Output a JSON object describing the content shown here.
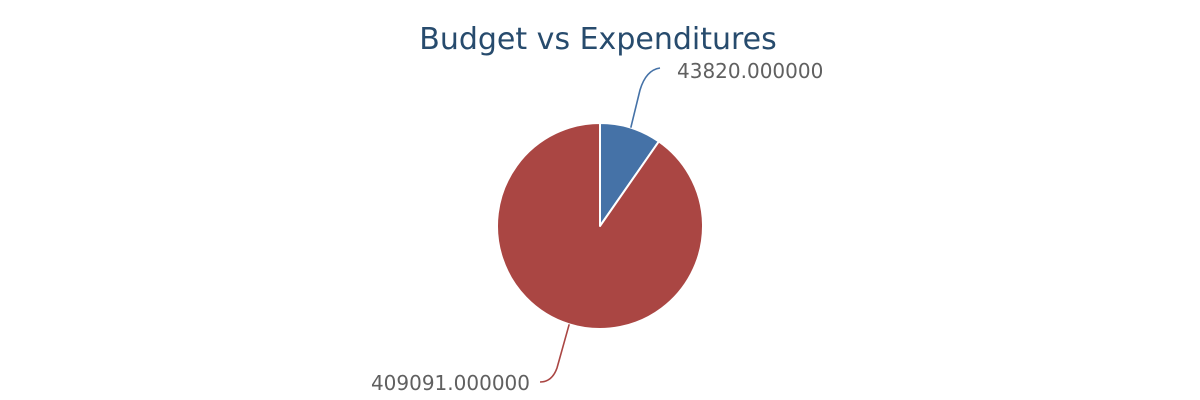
{
  "chart_data": {
    "type": "pie",
    "title": "Budget vs Expenditures",
    "slices": [
      {
        "value": 43820,
        "label": "43820.000000",
        "color": "#4572a7"
      },
      {
        "value": 409091,
        "label": "409091.000000",
        "color": "#aa4643"
      }
    ],
    "start_angle": "12 o'clock",
    "direction": "clockwise",
    "legend": "none"
  }
}
